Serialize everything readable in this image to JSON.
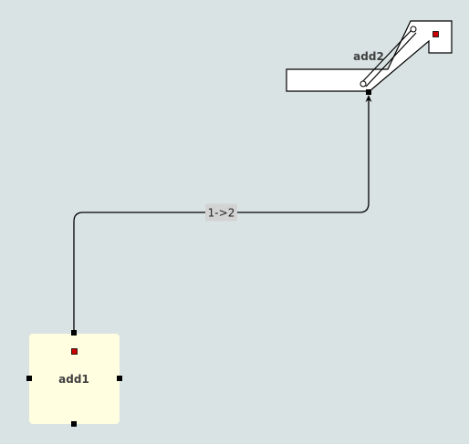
{
  "diagram": {
    "nodes": [
      {
        "id": "add1",
        "label": "add1",
        "shape": "rounded-rectangle",
        "fill": "#fffee0"
      },
      {
        "id": "add2",
        "label": "add2",
        "shape": "polyline-outline",
        "fill": "#ffffff"
      }
    ],
    "edges": [
      {
        "from": "add1",
        "to": "add2",
        "label": "1->2"
      }
    ],
    "colors": {
      "background": "#dae3e3",
      "node_fill": "#fffee0",
      "node_outline_fill": "#ffffff",
      "stroke": "#000000",
      "handle": "#000000",
      "marker": "#cc0000",
      "edge_label_bg": "#d3d3d3"
    }
  }
}
